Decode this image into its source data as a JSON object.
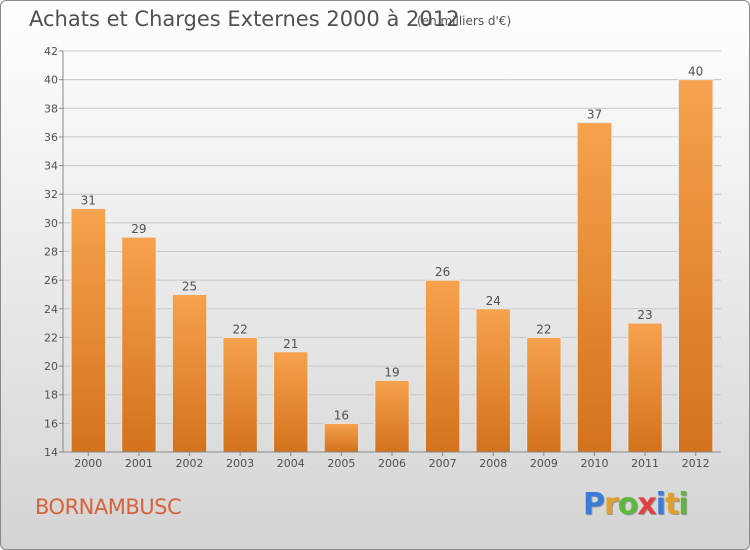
{
  "header": {
    "title": "Achats et Charges Externes 2000 à 2012",
    "subtitle": "(en milliers d'€)"
  },
  "footer": {
    "place": "BORNAMBUSC",
    "logo": "Proxiti",
    "logo_letters": [
      {
        "char": "P",
        "color": "#3a7bd5"
      },
      {
        "char": "r",
        "color": "#e0a030"
      },
      {
        "char": "o",
        "color": "#5cb83a"
      },
      {
        "char": "x",
        "color": "#e04040"
      },
      {
        "char": "i",
        "color": "#3a7bd5"
      },
      {
        "char": "t",
        "color": "#e0a030"
      },
      {
        "char": "i",
        "color": "#5cb83a"
      }
    ]
  },
  "colors": {
    "bar_top": "#f6a24e",
    "bar_bottom": "#d4721c",
    "axis": "#888888",
    "grid": "#c8c8c8",
    "text": "#505050"
  },
  "chart_data": {
    "type": "bar",
    "title": "Achats et Charges Externes 2000 à 2012",
    "subtitle": "(en milliers d'€)",
    "categories": [
      "2000",
      "2001",
      "2002",
      "2003",
      "2004",
      "2005",
      "2006",
      "2007",
      "2008",
      "2009",
      "2010",
      "2011",
      "2012"
    ],
    "values": [
      31,
      29,
      25,
      22,
      21,
      16,
      19,
      26,
      24,
      22,
      37,
      23,
      40
    ],
    "ylim": [
      14,
      42
    ],
    "yticks": [
      14,
      16,
      18,
      20,
      22,
      24,
      26,
      28,
      30,
      32,
      34,
      36,
      38,
      40,
      42
    ],
    "grid": true,
    "data_labels": true
  }
}
